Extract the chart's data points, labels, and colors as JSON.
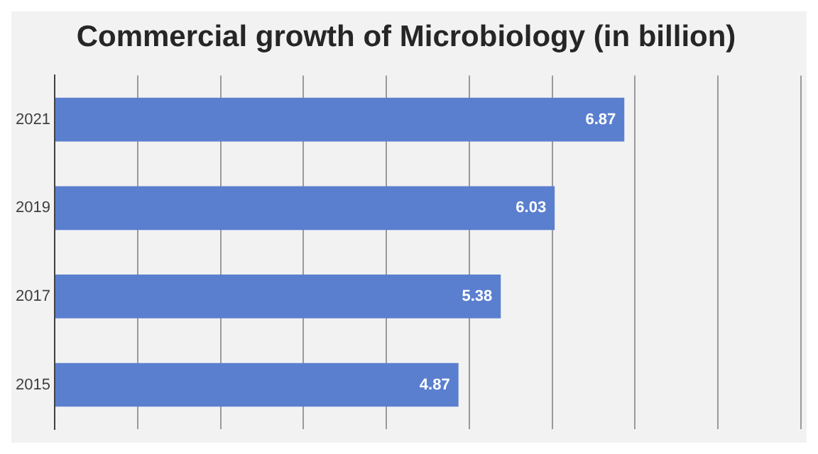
{
  "chart_data": {
    "type": "bar",
    "orientation": "horizontal",
    "title": "Commercial growth of Microbiology (in billion)",
    "categories": [
      "2021",
      "2019",
      "2017",
      "2015"
    ],
    "values": [
      6.87,
      6.03,
      5.38,
      4.87
    ],
    "color": "#5b7fcf",
    "xlim": [
      0,
      9
    ],
    "xticks": [
      {
        "value": 0,
        "label": null
      },
      {
        "value": 1,
        "label": null
      },
      {
        "value": 2,
        "label": null
      },
      {
        "value": 3,
        "label": null
      },
      {
        "value": 4,
        "label": null
      },
      {
        "value": 5,
        "label": null
      },
      {
        "value": 6,
        "label": null
      },
      {
        "value": 7,
        "label": null
      },
      {
        "value": 8,
        "label": null
      },
      {
        "value": 9,
        "label": null
      }
    ],
    "grid": "x",
    "tick_labels": "y",
    "data_labels": true,
    "legend": false
  }
}
